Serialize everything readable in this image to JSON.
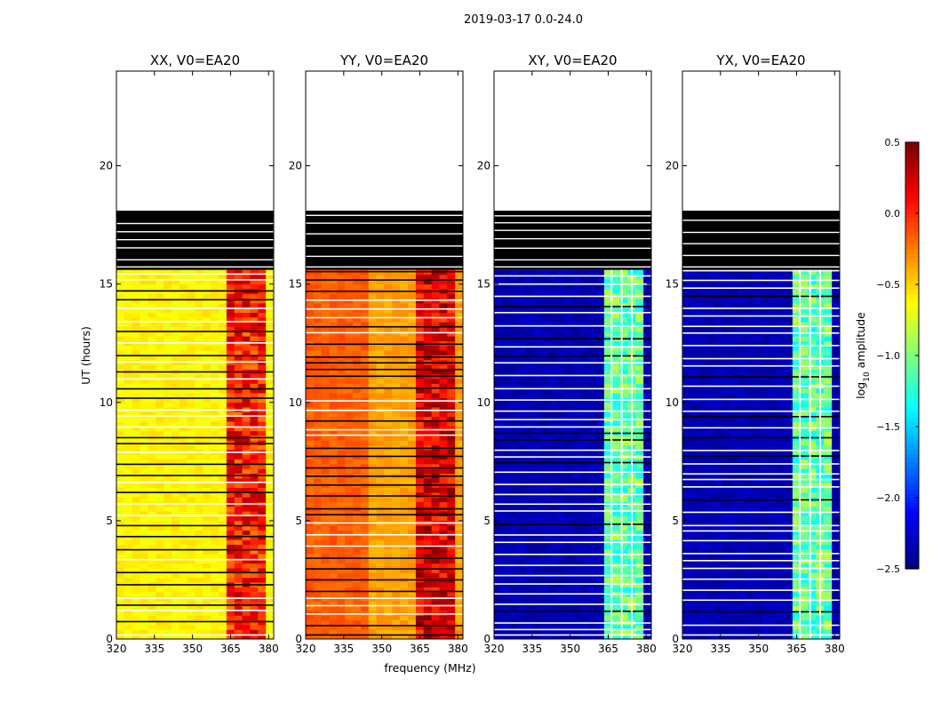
{
  "chart_data": {
    "type": "heatmap",
    "suptitle": "2019-03-17 0.0-24.0",
    "xlabel": "frequency (MHz)",
    "ylabel": "UT (hours)",
    "xlim": [
      320,
      382
    ],
    "ylim": [
      0,
      24
    ],
    "xticks": [
      320,
      335,
      350,
      365,
      380
    ],
    "yticks": [
      0,
      5,
      10,
      15,
      20
    ],
    "colorbar": {
      "label_prefix": "log",
      "label_sub": "10",
      "label_suffix": " amplitude",
      "range": [
        -2.5,
        0.5
      ],
      "ticks": [
        -2.5,
        -2.0,
        -1.5,
        -1.0,
        -0.5,
        0.0,
        0.5
      ],
      "tick_labels": [
        "−2.5",
        "−2.0",
        "−1.5",
        "−1.0",
        "−0.5",
        "0.0",
        "0.5"
      ],
      "colormap": "jet"
    },
    "data_extent_ut_hours": [
      0,
      15.6
    ],
    "flagged_block_ut_hours": [
      15.6,
      18.1
    ],
    "rfi_band_mhz": [
      363,
      380
    ],
    "panels": [
      {
        "title": "XX, V0=EA20",
        "base_log_amp": -0.6,
        "rfi_log_amp": 0.05
      },
      {
        "title": "YY, V0=EA20",
        "base_log_amp": -0.25,
        "rfi_log_amp": 0.2
      },
      {
        "title": "XY, V0=EA20",
        "base_log_amp": -2.35,
        "rfi_log_amp": -1.1
      },
      {
        "title": "YX, V0=EA20",
        "base_log_amp": -2.35,
        "rfi_log_amp": -1.1
      }
    ]
  }
}
